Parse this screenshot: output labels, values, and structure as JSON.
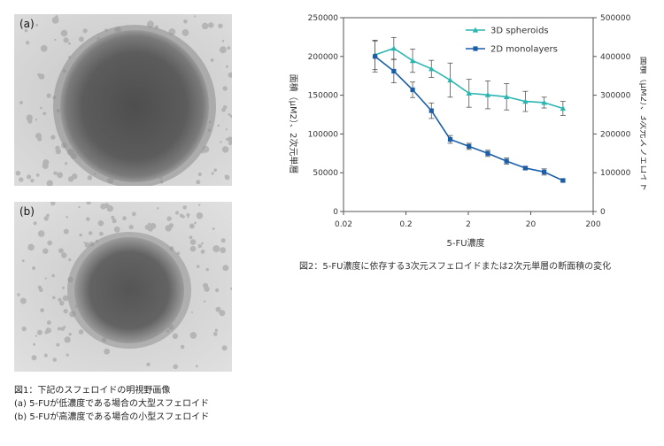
{
  "figure1": {
    "panel_a_label": "(a)",
    "panel_b_label": "(b)",
    "caption_title": "図1：下記のスフェロイドの明視野画像",
    "caption_a": "(a) 5-FUが低濃度である場合の大型スフェロイド",
    "caption_b": "(b) 5-FUが高濃度である場合の小型スフェロイド"
  },
  "figure2": {
    "caption": "図2：5-FU濃度に依存する3次元スフェロイドまたは2次元単層の断面積の変化"
  },
  "chart_data": {
    "type": "line",
    "xlabel": "5-FU濃度",
    "ylabel": "面積（μM2）、2次元単層",
    "y2label": "面積（μM2）、3次元スフェロイド",
    "x_scale": "log",
    "xlim": [
      0.02,
      200
    ],
    "x_ticks": [
      0.02,
      0.2,
      2,
      20,
      200
    ],
    "x_tick_labels": [
      "0.02",
      "0.2",
      "2",
      "20",
      "200"
    ],
    "ylim": [
      0,
      250000
    ],
    "y_ticks": [
      0,
      50000,
      100000,
      150000,
      200000,
      250000
    ],
    "y2lim": [
      0,
      500000
    ],
    "y2_ticks": [
      0,
      100000,
      200000,
      300000,
      400000,
      500000
    ],
    "legend_position": "top-right",
    "grid": false,
    "series": [
      {
        "name": "3D spheroids",
        "axis": "right",
        "color": "#2ab5b0",
        "marker": "triangle",
        "x": [
          0.064,
          0.128,
          0.256,
          0.512,
          1.024,
          2.048,
          4.096,
          8.192,
          16.384,
          32.768,
          65.536
        ],
        "y": [
          404000,
          421000,
          389000,
          368000,
          339000,
          305000,
          301000,
          296000,
          284000,
          281000,
          266000
        ],
        "err": [
          38000,
          28000,
          30000,
          22000,
          44000,
          36000,
          36000,
          34000,
          26000,
          14000,
          18000
        ]
      },
      {
        "name": "2D monolayers",
        "axis": "left",
        "color": "#1a5ea8",
        "marker": "square",
        "x": [
          0.064,
          0.128,
          0.256,
          0.512,
          1.024,
          2.048,
          4.096,
          8.192,
          16.384,
          32.768,
          65.536
        ],
        "y": [
          200000,
          181000,
          157000,
          130000,
          93000,
          84000,
          75000,
          65000,
          56000,
          51000,
          40000
        ],
        "err": [
          20000,
          15000,
          10000,
          10000,
          5000,
          4000,
          4000,
          4000,
          2000,
          4000,
          2000
        ]
      }
    ]
  }
}
